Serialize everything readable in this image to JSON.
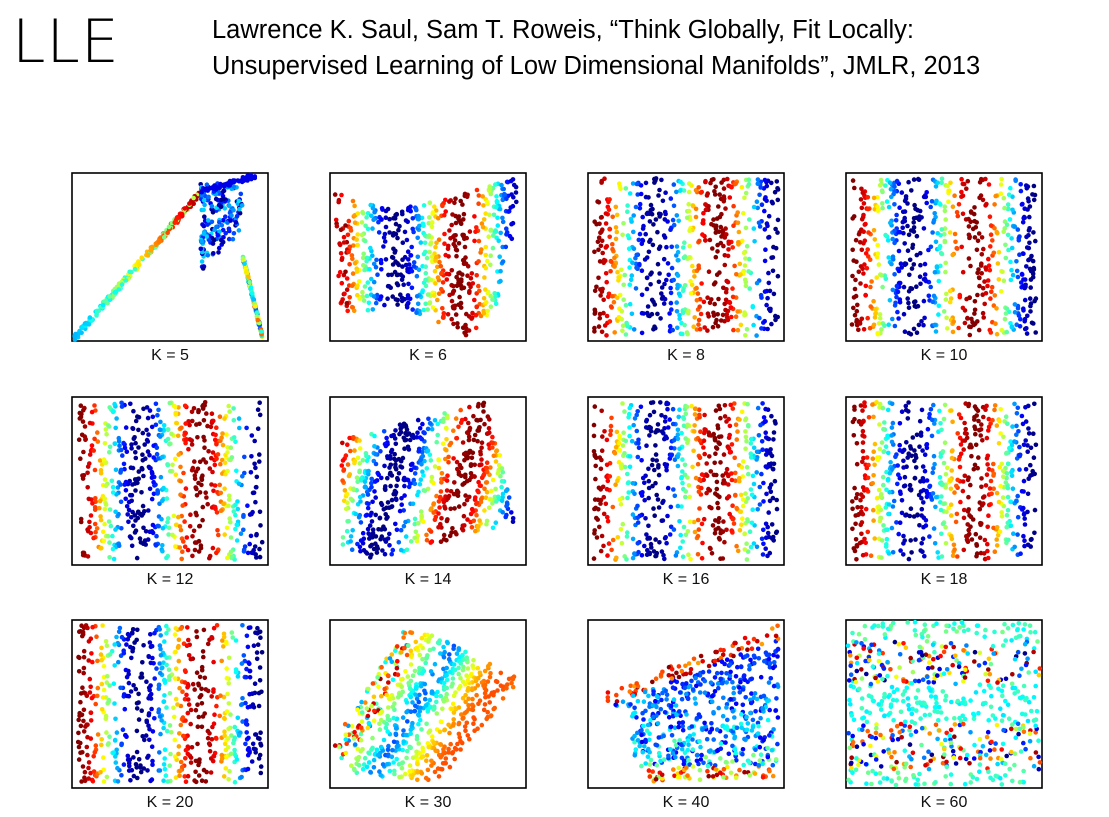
{
  "slide": {
    "title": "LLE",
    "citation_line1": "Lawrence K. Saul, Sam T. Roweis, “Think Globally, Fit Locally:",
    "citation_line2": "Unsupervised Learning of Low Dimensional Manifolds”, JMLR, 2013"
  },
  "chart_data": [
    {
      "type": "scatter",
      "label": "K = 5",
      "shape": "collapsed-arch",
      "colormap": "jet"
    },
    {
      "type": "scatter",
      "label": "K = 6",
      "shape": "skewed-sheet",
      "colormap": "jet"
    },
    {
      "type": "scatter",
      "label": "K = 8",
      "shape": "stripes",
      "colormap": "jet"
    },
    {
      "type": "scatter",
      "label": "K = 10",
      "shape": "stripes",
      "colormap": "jet"
    },
    {
      "type": "scatter",
      "label": "K = 12",
      "shape": "stripes",
      "colormap": "jet"
    },
    {
      "type": "scatter",
      "label": "K = 14",
      "shape": "tilted-stripes",
      "colormap": "jet"
    },
    {
      "type": "scatter",
      "label": "K = 16",
      "shape": "stripes",
      "colormap": "jet"
    },
    {
      "type": "scatter",
      "label": "K = 18",
      "shape": "stripes",
      "colormap": "jet"
    },
    {
      "type": "scatter",
      "label": "K = 20",
      "shape": "stripes",
      "colormap": "jet"
    },
    {
      "type": "scatter",
      "label": "K = 30",
      "shape": "rotated-square",
      "colormap": "jet"
    },
    {
      "type": "scatter",
      "label": "K = 40",
      "shape": "wedge",
      "colormap": "jet"
    },
    {
      "type": "scatter",
      "label": "K = 60",
      "shape": "horizontal-bands",
      "colormap": "jet"
    }
  ]
}
